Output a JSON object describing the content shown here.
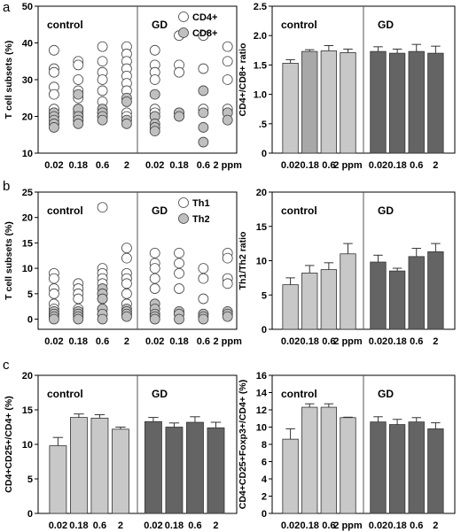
{
  "panels": [
    {
      "letter": "a"
    },
    {
      "letter": "b"
    },
    {
      "letter": "c"
    }
  ],
  "chart_data": [
    {
      "id": "a-left",
      "type": "scatter",
      "ylabel": "T cell subsets (%)",
      "ylim": [
        10,
        50
      ],
      "yticks": [
        10,
        20,
        30,
        40,
        50
      ],
      "x_tick_labels": [
        "0.02",
        "0.18",
        "0.6",
        "2",
        "0.02",
        "0.18",
        "0.6",
        "2 ppm"
      ],
      "group_labels": [
        "control",
        "GD"
      ],
      "legend": [
        "CD4+",
        "CD8+"
      ],
      "legend_position": "top-right",
      "series": [
        {
          "name": "CD4+",
          "fill": "#ffffff",
          "points": [
            [
              1,
              38
            ],
            [
              1,
              33
            ],
            [
              1,
              32
            ],
            [
              1,
              28
            ],
            [
              1,
              26
            ],
            [
              1,
              22
            ],
            [
              1,
              21
            ],
            [
              1,
              20
            ],
            [
              1,
              18
            ],
            [
              2,
              35
            ],
            [
              2,
              34
            ],
            [
              2,
              30
            ],
            [
              2,
              27
            ],
            [
              2,
              25
            ],
            [
              2,
              22
            ],
            [
              2,
              21
            ],
            [
              2,
              20
            ],
            [
              2,
              19
            ],
            [
              3,
              39
            ],
            [
              3,
              35
            ],
            [
              3,
              32
            ],
            [
              3,
              30
            ],
            [
              3,
              27
            ],
            [
              3,
              24
            ],
            [
              3,
              21
            ],
            [
              3,
              20
            ],
            [
              4,
              39
            ],
            [
              4,
              37
            ],
            [
              4,
              35
            ],
            [
              4,
              33
            ],
            [
              4,
              31
            ],
            [
              4,
              29
            ],
            [
              4,
              27
            ],
            [
              4,
              21
            ],
            [
              4,
              20
            ],
            [
              5,
              38
            ],
            [
              5,
              34
            ],
            [
              5,
              32
            ],
            [
              5,
              30
            ],
            [
              5,
              22
            ],
            [
              5,
              21
            ],
            [
              5,
              20
            ],
            [
              6,
              42
            ],
            [
              6,
              34
            ],
            [
              6,
              32
            ],
            [
              6,
              21
            ],
            [
              6,
              20
            ],
            [
              7,
              42
            ],
            [
              7,
              33
            ],
            [
              7,
              22
            ],
            [
              8,
              39
            ],
            [
              8,
              35
            ],
            [
              8,
              30
            ],
            [
              8,
              22
            ],
            [
              8,
              21
            ]
          ]
        },
        {
          "name": "CD8+",
          "fill": "#c0c0c0",
          "points": [
            [
              1,
              21
            ],
            [
              1,
              20
            ],
            [
              1,
              19
            ],
            [
              1,
              18
            ],
            [
              1,
              17
            ],
            [
              2,
              26
            ],
            [
              2,
              22
            ],
            [
              2,
              20
            ],
            [
              2,
              19
            ],
            [
              2,
              18
            ],
            [
              3,
              22
            ],
            [
              3,
              21
            ],
            [
              3,
              20
            ],
            [
              3,
              19
            ],
            [
              4,
              25
            ],
            [
              4,
              24
            ],
            [
              4,
              19
            ],
            [
              4,
              18
            ],
            [
              5,
              26
            ],
            [
              5,
              20
            ],
            [
              5,
              18
            ],
            [
              5,
              17
            ],
            [
              5,
              16
            ],
            [
              6,
              21
            ],
            [
              6,
              20
            ],
            [
              7,
              27
            ],
            [
              7,
              21
            ],
            [
              7,
              17
            ],
            [
              7,
              13
            ],
            [
              8,
              21
            ],
            [
              8,
              19
            ]
          ]
        }
      ]
    },
    {
      "id": "a-right",
      "type": "bar",
      "ylabel": "CD4+/CD8+ ratio",
      "ylim": [
        0,
        2.5
      ],
      "yticks": [
        0,
        0.5,
        1.0,
        1.5,
        2.0,
        2.5
      ],
      "ytick_labels": [
        "0",
        ".5",
        "1.0",
        "1.5",
        "2.0",
        "2.5"
      ],
      "categories": [
        "0.02",
        "0.18",
        "0.6",
        "2 ppm",
        "0.02",
        "0.18",
        "0.6",
        "2"
      ],
      "group_labels": [
        "control",
        "GD"
      ],
      "values": [
        1.53,
        1.73,
        1.74,
        1.71,
        1.73,
        1.7,
        1.73,
        1.7
      ],
      "errors": [
        0.06,
        0.03,
        0.09,
        0.06,
        0.08,
        0.07,
        0.12,
        0.12
      ],
      "colors": [
        "#c8c8c8",
        "#a8a8a8",
        "#c8c8c8",
        "#c8c8c8",
        "#646464",
        "#646464",
        "#646464",
        "#646464"
      ]
    },
    {
      "id": "b-left",
      "type": "scatter",
      "ylabel": "T cell subsets (%)",
      "ylim": [
        -2,
        25
      ],
      "yticks": [
        0,
        5,
        10,
        15,
        20,
        25
      ],
      "x_tick_labels": [
        "0.02",
        "0.18",
        "0.6",
        "2",
        "0.02",
        "0.18",
        "0.6",
        "2 ppm"
      ],
      "group_labels": [
        "control",
        "GD"
      ],
      "legend": [
        "Th1",
        "Th2"
      ],
      "legend_position": "top-right",
      "series": [
        {
          "name": "Th1",
          "fill": "#ffffff",
          "points": [
            [
              1,
              9
            ],
            [
              1,
              8
            ],
            [
              1,
              6
            ],
            [
              1,
              5
            ],
            [
              1,
              3
            ],
            [
              1,
              2
            ],
            [
              1,
              1
            ],
            [
              2,
              7
            ],
            [
              2,
              6
            ],
            [
              2,
              5
            ],
            [
              2,
              4
            ],
            [
              2,
              2
            ],
            [
              2,
              1
            ],
            [
              3,
              22
            ],
            [
              3,
              10
            ],
            [
              3,
              9
            ],
            [
              3,
              8
            ],
            [
              3,
              7
            ],
            [
              3,
              5
            ],
            [
              3,
              4
            ],
            [
              3,
              2
            ],
            [
              3,
              1
            ],
            [
              4,
              14
            ],
            [
              4,
              12
            ],
            [
              4,
              9
            ],
            [
              4,
              8
            ],
            [
              4,
              7
            ],
            [
              4,
              5
            ],
            [
              4,
              3
            ],
            [
              4,
              1
            ],
            [
              5,
              13
            ],
            [
              5,
              11
            ],
            [
              5,
              10
            ],
            [
              5,
              8
            ],
            [
              5,
              6
            ],
            [
              5,
              1
            ],
            [
              6,
              13
            ],
            [
              6,
              11
            ],
            [
              6,
              9
            ],
            [
              6,
              6
            ],
            [
              6,
              1
            ],
            [
              7,
              10
            ],
            [
              7,
              8
            ],
            [
              7,
              4
            ],
            [
              7,
              1
            ],
            [
              8,
              13
            ],
            [
              8,
              12
            ],
            [
              8,
              8
            ],
            [
              8,
              7
            ],
            [
              8,
              1
            ]
          ]
        },
        {
          "name": "Th2",
          "fill": "#c0c0c0",
          "points": [
            [
              1,
              1.5
            ],
            [
              1,
              1
            ],
            [
              1,
              0.5
            ],
            [
              1,
              0
            ],
            [
              2,
              1.5
            ],
            [
              2,
              1
            ],
            [
              2,
              0.5
            ],
            [
              2,
              0
            ],
            [
              3,
              6
            ],
            [
              3,
              5
            ],
            [
              3,
              4
            ],
            [
              3,
              2
            ],
            [
              3,
              1
            ],
            [
              3,
              0
            ],
            [
              4,
              2
            ],
            [
              4,
              1.5
            ],
            [
              4,
              1
            ],
            [
              4,
              0.5
            ],
            [
              5,
              3
            ],
            [
              5,
              2
            ],
            [
              5,
              1
            ],
            [
              5,
              0.5
            ],
            [
              5,
              0
            ],
            [
              6,
              1.5
            ],
            [
              6,
              1
            ],
            [
              6,
              0
            ],
            [
              7,
              1
            ],
            [
              7,
              0.5
            ],
            [
              7,
              0
            ],
            [
              8,
              1.5
            ],
            [
              8,
              1
            ],
            [
              8,
              0.5
            ]
          ]
        }
      ]
    },
    {
      "id": "b-right",
      "type": "bar",
      "ylabel": "Th1/Th2 ratio",
      "ylim": [
        0,
        20
      ],
      "yticks": [
        0,
        5,
        10,
        15,
        20
      ],
      "ytick_labels": [
        "0",
        "5",
        "10",
        "15",
        "20"
      ],
      "categories": [
        "0.02",
        "0.18",
        "0.6",
        "2 ppm",
        "0.02",
        "0.18",
        "0.6",
        "2"
      ],
      "group_labels": [
        "control",
        "GD"
      ],
      "values": [
        6.5,
        8.2,
        8.7,
        11.0,
        9.8,
        8.5,
        10.6,
        11.3
      ],
      "errors": [
        1.0,
        1.1,
        1.0,
        1.5,
        1.0,
        0.4,
        1.2,
        1.2
      ],
      "colors": [
        "#c8c8c8",
        "#c8c8c8",
        "#c8c8c8",
        "#c8c8c8",
        "#646464",
        "#646464",
        "#646464",
        "#646464"
      ]
    },
    {
      "id": "c-left",
      "type": "bar",
      "ylabel": "CD4+CD25+/CD4+ (%)",
      "ylim": [
        0,
        20
      ],
      "yticks": [
        0,
        5,
        10,
        15,
        20
      ],
      "ytick_labels": [
        "0",
        "5",
        "10",
        "15",
        "20"
      ],
      "categories": [
        "0.02",
        "0.18",
        "0.6",
        "2",
        "0.02",
        "0.18",
        "0.6",
        "2"
      ],
      "group_labels": [
        "control",
        "GD"
      ],
      "values": [
        9.8,
        13.9,
        13.8,
        12.2,
        13.3,
        12.5,
        13.2,
        12.4
      ],
      "errors": [
        1.2,
        0.5,
        0.5,
        0.3,
        0.6,
        0.6,
        0.8,
        0.8
      ],
      "colors": [
        "#c8c8c8",
        "#c8c8c8",
        "#c8c8c8",
        "#c8c8c8",
        "#646464",
        "#646464",
        "#646464",
        "#646464"
      ]
    },
    {
      "id": "c-right",
      "type": "bar",
      "ylabel": "CD4+CD25+Foxp3+/CD4+ (%)",
      "ylim": [
        0,
        16
      ],
      "yticks": [
        0,
        2,
        4,
        6,
        8,
        10,
        12,
        14,
        16
      ],
      "ytick_labels": [
        "0",
        "2",
        "4",
        "6",
        "8",
        "10",
        "12",
        "14",
        "16"
      ],
      "categories": [
        "0.02",
        "0.18",
        "0.6",
        "2 ppm",
        "0.02",
        "0.18",
        "0.6",
        "2"
      ],
      "group_labels": [
        "control",
        "GD"
      ],
      "values": [
        8.6,
        12.3,
        12.3,
        11.1,
        10.6,
        10.3,
        10.6,
        9.8
      ],
      "errors": [
        1.2,
        0.4,
        0.4,
        0.05,
        0.6,
        0.6,
        0.5,
        0.7
      ],
      "colors": [
        "#c8c8c8",
        "#c8c8c8",
        "#c8c8c8",
        "#c8c8c8",
        "#646464",
        "#646464",
        "#646464",
        "#646464"
      ]
    }
  ]
}
